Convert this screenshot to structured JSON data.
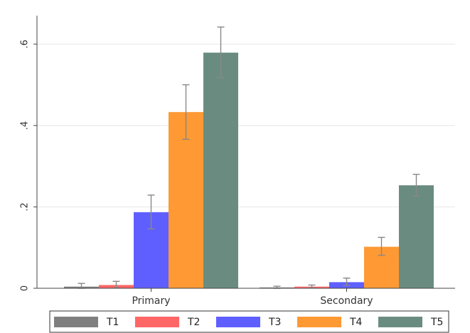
{
  "chart_data": {
    "type": "bar",
    "categories": [
      "Primary",
      "Secondary"
    ],
    "series": [
      {
        "name": "T1",
        "color": "#7f7f7f",
        "values": [
          0.004,
          0.002
        ],
        "err_low": [
          0.0,
          0.0
        ],
        "err_high": [
          0.012,
          0.005
        ]
      },
      {
        "name": "T2",
        "color": "#ff6666",
        "values": [
          0.008,
          0.004
        ],
        "err_low": [
          0.001,
          0.001
        ],
        "err_high": [
          0.017,
          0.008
        ]
      },
      {
        "name": "T3",
        "color": "#5f5fff",
        "values": [
          0.187,
          0.015
        ],
        "err_low": [
          0.146,
          0.007
        ],
        "err_high": [
          0.229,
          0.025
        ]
      },
      {
        "name": "T4",
        "color": "#ff9933",
        "values": [
          0.433,
          0.102
        ],
        "err_low": [
          0.366,
          0.081
        ],
        "err_high": [
          0.5,
          0.125
        ]
      },
      {
        "name": "T5",
        "color": "#6a8c80",
        "values": [
          0.579,
          0.253
        ],
        "err_low": [
          0.517,
          0.226
        ],
        "err_high": [
          0.642,
          0.28
        ]
      }
    ],
    "y_ticks": [
      0,
      0.2,
      0.4,
      0.6
    ],
    "y_tick_labels": [
      "0",
      ".2",
      ".4",
      ".6"
    ],
    "ylim": [
      0,
      0.67
    ],
    "grid": true,
    "legend_position": "bottom"
  }
}
